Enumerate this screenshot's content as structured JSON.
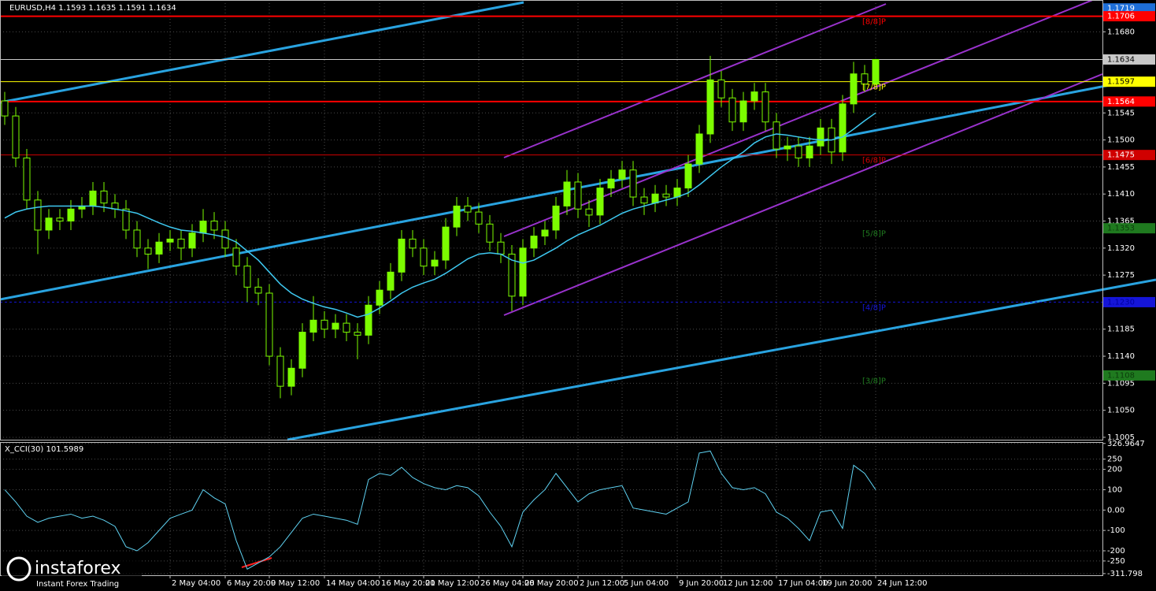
{
  "chart_data": {
    "type": "candlestick",
    "title": "EURUSD,H4  1.1593 1.1635 1.1591 1.1634",
    "categories": [
      null,
      null,
      null,
      null,
      null,
      null,
      null,
      null,
      null,
      null,
      null,
      null,
      null,
      null,
      null,
      "2 May 04:00",
      null,
      null,
      null,
      null,
      "6 May 20:00",
      null,
      null,
      null,
      "9 May 12:00",
      null,
      null,
      null,
      null,
      "14 May 04:00",
      null,
      null,
      null,
      null,
      "16 May 20:00",
      null,
      null,
      null,
      "21 May 12:00",
      null,
      null,
      null,
      null,
      "26 May 04:00",
      null,
      null,
      null,
      "28 May 20:00",
      null,
      null,
      null,
      null,
      "2 Jun 12:00",
      null,
      null,
      null,
      "5 Jun 04:00",
      null,
      null,
      null,
      null,
      "9 Jun 20:00",
      null,
      null,
      null,
      "12 Jun 12:00",
      null,
      null,
      null,
      null,
      "17 Jun 04:00",
      null,
      null,
      null,
      "19 Jun 20:00",
      null,
      null,
      null,
      null,
      "24 Jun 12:00"
    ],
    "open": [
      1.1565,
      1.154,
      1.147,
      1.14,
      1.135,
      1.137,
      1.1365,
      1.1385,
      1.139,
      1.1415,
      1.1395,
      1.1385,
      1.135,
      1.132,
      1.131,
      1.133,
      1.1335,
      1.132,
      1.1345,
      1.1365,
      1.135,
      1.132,
      1.129,
      1.1255,
      1.1245,
      1.114,
      1.109,
      1.112,
      1.118,
      1.12,
      1.1185,
      1.1195,
      1.118,
      1.1175,
      1.1225,
      1.125,
      1.128,
      1.1335,
      1.132,
      1.129,
      1.13,
      1.1355,
      1.139,
      1.138,
      1.136,
      1.133,
      1.131,
      1.124,
      1.132,
      1.134,
      1.135,
      1.139,
      1.143,
      1.1385,
      1.1375,
      1.142,
      1.1435,
      1.145,
      1.1405,
      1.1395,
      1.141,
      1.1405,
      1.142,
      1.146,
      1.151,
      1.16,
      1.157,
      1.153,
      1.1565,
      1.158,
      1.153,
      1.1485,
      1.149,
      1.147,
      1.149,
      1.152,
      1.148,
      1.156,
      1.161,
      1.1593
    ],
    "high": [
      1.158,
      1.1555,
      1.1485,
      1.1415,
      1.1385,
      1.1385,
      1.14,
      1.1405,
      1.143,
      1.143,
      1.141,
      1.14,
      1.1365,
      1.1335,
      1.1345,
      1.135,
      1.135,
      1.136,
      1.1385,
      1.138,
      1.1365,
      1.1335,
      1.1305,
      1.127,
      1.126,
      1.1155,
      1.1135,
      1.1195,
      1.124,
      1.1215,
      1.121,
      1.121,
      1.1195,
      1.124,
      1.1265,
      1.1295,
      1.135,
      1.135,
      1.1335,
      1.1315,
      1.137,
      1.1405,
      1.1405,
      1.1395,
      1.1375,
      1.1345,
      1.1325,
      1.1335,
      1.1355,
      1.1365,
      1.1405,
      1.145,
      1.1445,
      1.14,
      1.1435,
      1.145,
      1.1465,
      1.1465,
      1.142,
      1.1425,
      1.1425,
      1.1435,
      1.1475,
      1.1525,
      1.164,
      1.1615,
      1.1585,
      1.158,
      1.1595,
      1.1595,
      1.1545,
      1.1505,
      1.1505,
      1.1505,
      1.1535,
      1.1535,
      1.1575,
      1.163,
      1.1625,
      1.1635
    ],
    "low": [
      1.1525,
      1.1455,
      1.1385,
      1.131,
      1.1335,
      1.135,
      1.135,
      1.137,
      1.1375,
      1.138,
      1.137,
      1.1335,
      1.1305,
      1.1285,
      1.1295,
      1.1315,
      1.13,
      1.1305,
      1.133,
      1.1335,
      1.1305,
      1.1275,
      1.123,
      1.1225,
      1.1125,
      1.107,
      1.1075,
      1.1105,
      1.1165,
      1.117,
      1.117,
      1.1165,
      1.1135,
      1.116,
      1.121,
      1.1235,
      1.1265,
      1.1305,
      1.1275,
      1.1275,
      1.1285,
      1.134,
      1.1365,
      1.1345,
      1.1315,
      1.1295,
      1.1215,
      1.1225,
      1.1305,
      1.1325,
      1.1335,
      1.1375,
      1.137,
      1.1355,
      1.136,
      1.1405,
      1.142,
      1.139,
      1.1375,
      1.138,
      1.139,
      1.139,
      1.1405,
      1.1445,
      1.1495,
      1.1555,
      1.1515,
      1.1515,
      1.155,
      1.1515,
      1.147,
      1.1465,
      1.1455,
      1.1455,
      1.1475,
      1.146,
      1.1465,
      1.1545,
      1.158,
      1.1591
    ],
    "close": [
      1.154,
      1.147,
      1.14,
      1.135,
      1.137,
      1.1365,
      1.1385,
      1.139,
      1.1415,
      1.1395,
      1.1385,
      1.135,
      1.132,
      1.131,
      1.133,
      1.1335,
      1.132,
      1.1345,
      1.1365,
      1.135,
      1.132,
      1.129,
      1.1255,
      1.1245,
      1.114,
      1.109,
      1.112,
      1.118,
      1.12,
      1.1185,
      1.1195,
      1.118,
      1.1175,
      1.1225,
      1.125,
      1.128,
      1.1335,
      1.132,
      1.129,
      1.13,
      1.1355,
      1.139,
      1.138,
      1.136,
      1.133,
      1.131,
      1.124,
      1.132,
      1.134,
      1.135,
      1.139,
      1.143,
      1.1385,
      1.1375,
      1.142,
      1.1435,
      1.145,
      1.1405,
      1.1395,
      1.141,
      1.1405,
      1.142,
      1.146,
      1.151,
      1.16,
      1.157,
      1.153,
      1.1565,
      1.158,
      1.153,
      1.1485,
      1.149,
      1.147,
      1.149,
      1.152,
      1.148,
      1.156,
      1.161,
      1.1593,
      1.1634
    ],
    "color": "#7cfc00",
    "ma": {
      "color": "#3ec8f0",
      "values": [
        1.137,
        1.138,
        1.1385,
        1.1388,
        1.139,
        1.139,
        1.139,
        1.139,
        1.139,
        1.1388,
        1.1385,
        1.1382,
        1.1378,
        1.137,
        1.1362,
        1.1355,
        1.135,
        1.1348,
        1.1345,
        1.1342,
        1.1338,
        1.133,
        1.1315,
        1.13,
        1.128,
        1.126,
        1.1245,
        1.1235,
        1.1228,
        1.1222,
        1.1218,
        1.1212,
        1.1205,
        1.121,
        1.122,
        1.1232,
        1.1245,
        1.1255,
        1.1262,
        1.1268,
        1.1278,
        1.129,
        1.1302,
        1.131,
        1.1312,
        1.131,
        1.13,
        1.1295,
        1.13,
        1.131,
        1.132,
        1.1332,
        1.1342,
        1.135,
        1.1358,
        1.1368,
        1.1378,
        1.1385,
        1.139,
        1.1395,
        1.14,
        1.1405,
        1.1412,
        1.1425,
        1.144,
        1.1455,
        1.1468,
        1.148,
        1.1495,
        1.1505,
        1.151,
        1.1508,
        1.1505,
        1.1502,
        1.15,
        1.15,
        1.1505,
        1.1518,
        1.1532,
        1.1545
      ]
    },
    "ylim": [
      1.1001,
      1.1733
    ],
    "yticks": [
      {
        "value": 1.168,
        "label": "1.1680"
      },
      1.1545,
      {
        "value": 1.15,
        "label": "1.1500"
      },
      1.1455,
      {
        "value": 1.141,
        "label": "1.1410"
      },
      1.1365,
      {
        "value": 1.132,
        "label": "1.1320"
      },
      1.1275,
      1.1185,
      {
        "value": 1.114,
        "label": "1.1140"
      },
      1.1095,
      {
        "value": 1.105,
        "label": "1.1050"
      },
      1.1005
    ],
    "grid": true,
    "levels": [
      {
        "value": 1.1719,
        "color": "#1e6fd8",
        "label_color": "#ffffff",
        "style": "none"
      },
      {
        "value": 1.1706,
        "color": "#ff0000",
        "label_color": "#ffffff",
        "style": "solid",
        "tag": "[8/8]P"
      },
      {
        "value": 1.1634,
        "color": "#c8c8c8",
        "label_color": "#000000",
        "style": "thin"
      },
      {
        "value": 1.1597,
        "color": "#ffff00",
        "label_color": "#000000",
        "style": "thin",
        "tag": "[7/8]P"
      },
      {
        "value": 1.1564,
        "color": "#ff0000",
        "label_color": "#ffffff",
        "style": "solid"
      },
      {
        "value": 1.1475,
        "color": "#d00000",
        "label_color": "#ffffff",
        "style": "thin",
        "tag": "[6/8]P"
      },
      {
        "value": 1.1353,
        "color": "#1f7a1f",
        "label_color": "#0b3d0b",
        "style": "none",
        "tag": "[5/8]P"
      },
      {
        "value": 1.123,
        "label": "1.1230",
        "color": "#1515d8",
        "label_color": "#0000a0",
        "style": "dashed",
        "tag": "[4/8]P"
      },
      {
        "value": 1.1108,
        "color": "#1f7a1f",
        "label_color": "#0b3d0b",
        "style": "none",
        "tag": "[3/8]P"
      }
    ],
    "indicator": {
      "title": "X_CCI(30) 101.5989",
      "color": "#5fd3f3",
      "values": [
        100,
        40,
        -30,
        -60,
        -40,
        -30,
        -20,
        -40,
        -30,
        -50,
        -80,
        -180,
        -200,
        -160,
        -100,
        -40,
        -20,
        0,
        100,
        60,
        30,
        -150,
        -290,
        -260,
        -230,
        -180,
        -110,
        -40,
        -20,
        -30,
        -40,
        -50,
        -70,
        150,
        180,
        170,
        210,
        160,
        130,
        110,
        100,
        120,
        110,
        70,
        -10,
        -80,
        -180,
        -10,
        50,
        100,
        180,
        110,
        40,
        80,
        100,
        110,
        120,
        10,
        0,
        -10,
        -20,
        10,
        40,
        280,
        290,
        180,
        110,
        100,
        110,
        80,
        -10,
        -40,
        -90,
        -150,
        -10,
        0,
        -90,
        220,
        180,
        100
      ],
      "ylim": [
        -320,
        330
      ],
      "yticks": [
        326.9647,
        250,
        200,
        100,
        {
          "value": 0,
          "label": "0.00"
        },
        -100,
        -200,
        -250,
        -311.798
      ]
    },
    "watermark": "instaforex",
    "watermark_sub": "Instant Forex Trading"
  }
}
